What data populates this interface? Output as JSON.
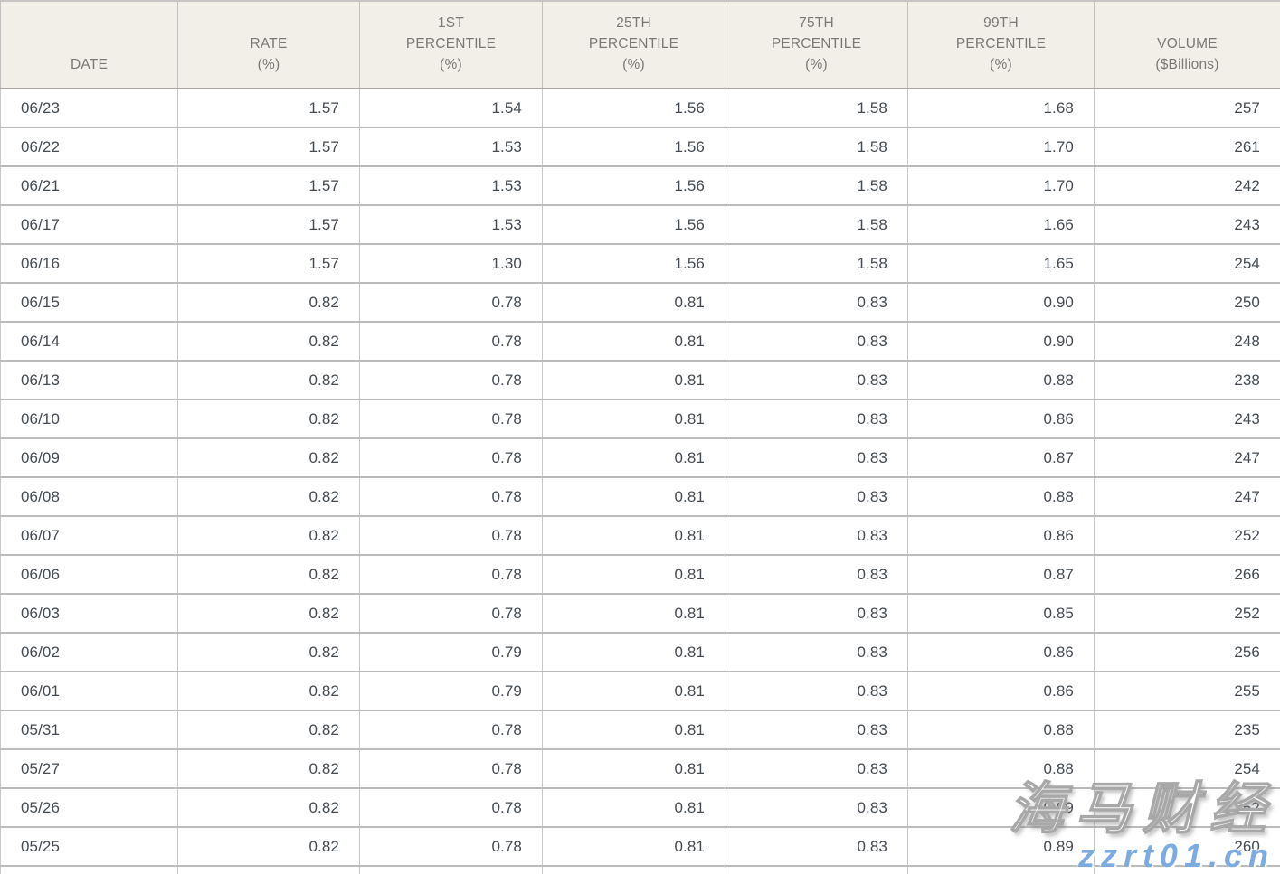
{
  "colors": {
    "header_background": "#f2efe9",
    "header_text": "#7b7973",
    "cell_text": "#444b52",
    "border": "#bcbbb9",
    "watermark_site_blue": "#7cabe2",
    "watermark_brand_fill": "#ffffff"
  },
  "table": {
    "columns": [
      {
        "id": "date",
        "label": "DATE",
        "align": "left"
      },
      {
        "id": "rate",
        "label": "RATE\n(%)",
        "align": "right"
      },
      {
        "id": "p1",
        "label": "1ST\nPERCENTILE\n(%)",
        "align": "right"
      },
      {
        "id": "p25",
        "label": "25TH\nPERCENTILE\n(%)",
        "align": "right"
      },
      {
        "id": "p75",
        "label": "75TH\nPERCENTILE\n(%)",
        "align": "right"
      },
      {
        "id": "p99",
        "label": "99TH\nPERCENTILE\n(%)",
        "align": "right"
      },
      {
        "id": "volume",
        "label": "VOLUME\n($Billions)",
        "align": "right"
      }
    ],
    "rows": [
      [
        "06/23",
        "1.57",
        "1.54",
        "1.56",
        "1.58",
        "1.68",
        "257"
      ],
      [
        "06/22",
        "1.57",
        "1.53",
        "1.56",
        "1.58",
        "1.70",
        "261"
      ],
      [
        "06/21",
        "1.57",
        "1.53",
        "1.56",
        "1.58",
        "1.70",
        "242"
      ],
      [
        "06/17",
        "1.57",
        "1.53",
        "1.56",
        "1.58",
        "1.66",
        "243"
      ],
      [
        "06/16",
        "1.57",
        "1.30",
        "1.56",
        "1.58",
        "1.65",
        "254"
      ],
      [
        "06/15",
        "0.82",
        "0.78",
        "0.81",
        "0.83",
        "0.90",
        "250"
      ],
      [
        "06/14",
        "0.82",
        "0.78",
        "0.81",
        "0.83",
        "0.90",
        "248"
      ],
      [
        "06/13",
        "0.82",
        "0.78",
        "0.81",
        "0.83",
        "0.88",
        "238"
      ],
      [
        "06/10",
        "0.82",
        "0.78",
        "0.81",
        "0.83",
        "0.86",
        "243"
      ],
      [
        "06/09",
        "0.82",
        "0.78",
        "0.81",
        "0.83",
        "0.87",
        "247"
      ],
      [
        "06/08",
        "0.82",
        "0.78",
        "0.81",
        "0.83",
        "0.88",
        "247"
      ],
      [
        "06/07",
        "0.82",
        "0.78",
        "0.81",
        "0.83",
        "0.86",
        "252"
      ],
      [
        "06/06",
        "0.82",
        "0.78",
        "0.81",
        "0.83",
        "0.87",
        "266"
      ],
      [
        "06/03",
        "0.82",
        "0.78",
        "0.81",
        "0.83",
        "0.85",
        "252"
      ],
      [
        "06/02",
        "0.82",
        "0.79",
        "0.81",
        "0.83",
        "0.86",
        "256"
      ],
      [
        "06/01",
        "0.82",
        "0.79",
        "0.81",
        "0.83",
        "0.86",
        "255"
      ],
      [
        "05/31",
        "0.82",
        "0.78",
        "0.81",
        "0.83",
        "0.88",
        "235"
      ],
      [
        "05/27",
        "0.82",
        "0.78",
        "0.81",
        "0.83",
        "0.88",
        "254"
      ],
      [
        "05/26",
        "0.82",
        "0.78",
        "0.81",
        "0.83",
        "0.89",
        "252"
      ],
      [
        "05/25",
        "0.82",
        "0.78",
        "0.81",
        "0.83",
        "0.89",
        "260"
      ]
    ]
  },
  "watermark": {
    "brand": "海马财经",
    "site": "zzrt01.cn"
  },
  "chart_data": {
    "type": "table",
    "title": "",
    "columns": [
      "DATE",
      "RATE (%)",
      "1ST PERCENTILE (%)",
      "25TH PERCENTILE (%)",
      "75TH PERCENTILE (%)",
      "99TH PERCENTILE (%)",
      "VOLUME ($Billions)"
    ],
    "rows": [
      [
        "06/23",
        1.57,
        1.54,
        1.56,
        1.58,
        1.68,
        257
      ],
      [
        "06/22",
        1.57,
        1.53,
        1.56,
        1.58,
        1.7,
        261
      ],
      [
        "06/21",
        1.57,
        1.53,
        1.56,
        1.58,
        1.7,
        242
      ],
      [
        "06/17",
        1.57,
        1.53,
        1.56,
        1.58,
        1.66,
        243
      ],
      [
        "06/16",
        1.57,
        1.3,
        1.56,
        1.58,
        1.65,
        254
      ],
      [
        "06/15",
        0.82,
        0.78,
        0.81,
        0.83,
        0.9,
        250
      ],
      [
        "06/14",
        0.82,
        0.78,
        0.81,
        0.83,
        0.9,
        248
      ],
      [
        "06/13",
        0.82,
        0.78,
        0.81,
        0.83,
        0.88,
        238
      ],
      [
        "06/10",
        0.82,
        0.78,
        0.81,
        0.83,
        0.86,
        243
      ],
      [
        "06/09",
        0.82,
        0.78,
        0.81,
        0.83,
        0.87,
        247
      ],
      [
        "06/08",
        0.82,
        0.78,
        0.81,
        0.83,
        0.88,
        247
      ],
      [
        "06/07",
        0.82,
        0.78,
        0.81,
        0.83,
        0.86,
        252
      ],
      [
        "06/06",
        0.82,
        0.78,
        0.81,
        0.83,
        0.87,
        266
      ],
      [
        "06/03",
        0.82,
        0.78,
        0.81,
        0.83,
        0.85,
        252
      ],
      [
        "06/02",
        0.82,
        0.79,
        0.81,
        0.83,
        0.86,
        256
      ],
      [
        "06/01",
        0.82,
        0.79,
        0.81,
        0.83,
        0.86,
        255
      ],
      [
        "05/31",
        0.82,
        0.78,
        0.81,
        0.83,
        0.88,
        235
      ],
      [
        "05/27",
        0.82,
        0.78,
        0.81,
        0.83,
        0.88,
        254
      ],
      [
        "05/26",
        0.82,
        0.78,
        0.81,
        0.83,
        0.89,
        252
      ],
      [
        "05/25",
        0.82,
        0.78,
        0.81,
        0.83,
        0.89,
        260
      ]
    ]
  }
}
